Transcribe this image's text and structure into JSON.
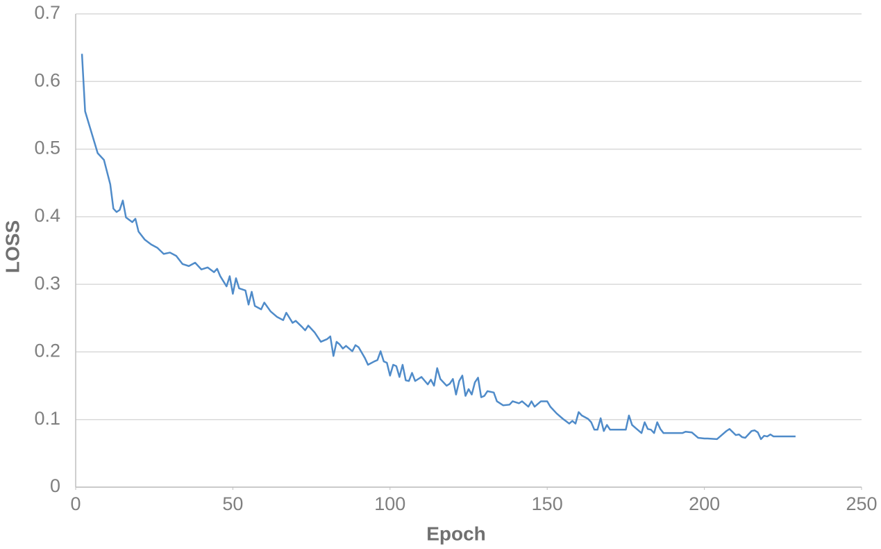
{
  "chart_data": {
    "type": "line",
    "x_label": "Epoch",
    "y_label": "LOSS",
    "xlim": [
      0,
      250
    ],
    "ylim": [
      0,
      0.7
    ],
    "xticks": [
      0,
      50,
      100,
      150,
      200,
      250
    ],
    "yticks": [
      0,
      0.1,
      0.2,
      0.3,
      0.4,
      0.5,
      0.6,
      0.7
    ],
    "grid": true,
    "series": [
      {
        "color": "#4f8bc9",
        "x": [
          2,
          3,
          5,
          7,
          9,
          11,
          12,
          13,
          14,
          15,
          16,
          18,
          19,
          20,
          22,
          24,
          26,
          28,
          30,
          32,
          34,
          36,
          38,
          40,
          42,
          44,
          45,
          46,
          48,
          49,
          50,
          51,
          52,
          54,
          55,
          56,
          57,
          59,
          60,
          62,
          64,
          66,
          67,
          69,
          70,
          72,
          73,
          74,
          76,
          78,
          80,
          81,
          82,
          83,
          84,
          85,
          86,
          88,
          89,
          90,
          92,
          93,
          95,
          96,
          97,
          98,
          99,
          100,
          101,
          102,
          103,
          104,
          105,
          106,
          107,
          108,
          110,
          112,
          113,
          114,
          115,
          116,
          118,
          119,
          120,
          121,
          122,
          123,
          124,
          125,
          126,
          127,
          128,
          129,
          130,
          131,
          133,
          134,
          136,
          138,
          139,
          141,
          142,
          144,
          145,
          146,
          148,
          150,
          151,
          153,
          155,
          157,
          158,
          159,
          160,
          161,
          163,
          164,
          165,
          166,
          167,
          168,
          169,
          170,
          173,
          175,
          176,
          177,
          178,
          180,
          181,
          182,
          183,
          184,
          185,
          186,
          187,
          190,
          193,
          194,
          196,
          198,
          200,
          201,
          204,
          205,
          207,
          208,
          210,
          211,
          212,
          213,
          214,
          215,
          216,
          217,
          218,
          219,
          220,
          221,
          222,
          225,
          229
        ],
        "values": [
          0.641,
          0.556,
          0.525,
          0.494,
          0.484,
          0.448,
          0.412,
          0.407,
          0.41,
          0.424,
          0.399,
          0.392,
          0.397,
          0.378,
          0.366,
          0.359,
          0.354,
          0.345,
          0.347,
          0.342,
          0.33,
          0.327,
          0.332,
          0.322,
          0.325,
          0.318,
          0.323,
          0.312,
          0.297,
          0.312,
          0.286,
          0.309,
          0.294,
          0.291,
          0.27,
          0.289,
          0.268,
          0.263,
          0.273,
          0.26,
          0.252,
          0.247,
          0.258,
          0.243,
          0.246,
          0.237,
          0.232,
          0.239,
          0.229,
          0.215,
          0.219,
          0.223,
          0.194,
          0.215,
          0.211,
          0.205,
          0.209,
          0.201,
          0.21,
          0.207,
          0.191,
          0.181,
          0.186,
          0.188,
          0.201,
          0.186,
          0.184,
          0.165,
          0.181,
          0.179,
          0.163,
          0.181,
          0.158,
          0.157,
          0.169,
          0.157,
          0.163,
          0.152,
          0.159,
          0.15,
          0.176,
          0.16,
          0.15,
          0.153,
          0.16,
          0.137,
          0.157,
          0.165,
          0.135,
          0.145,
          0.137,
          0.155,
          0.162,
          0.133,
          0.135,
          0.142,
          0.14,
          0.127,
          0.121,
          0.122,
          0.127,
          0.124,
          0.127,
          0.119,
          0.127,
          0.119,
          0.127,
          0.127,
          0.119,
          0.109,
          0.101,
          0.094,
          0.098,
          0.094,
          0.111,
          0.106,
          0.101,
          0.096,
          0.085,
          0.085,
          0.102,
          0.083,
          0.092,
          0.085,
          0.085,
          0.085,
          0.106,
          0.092,
          0.088,
          0.08,
          0.096,
          0.086,
          0.085,
          0.08,
          0.096,
          0.086,
          0.08,
          0.08,
          0.08,
          0.082,
          0.081,
          0.073,
          0.072,
          0.072,
          0.071,
          0.075,
          0.083,
          0.086,
          0.077,
          0.078,
          0.074,
          0.073,
          0.078,
          0.083,
          0.084,
          0.081,
          0.071,
          0.076,
          0.075,
          0.078,
          0.075,
          0.075,
          0.075
        ]
      }
    ]
  }
}
